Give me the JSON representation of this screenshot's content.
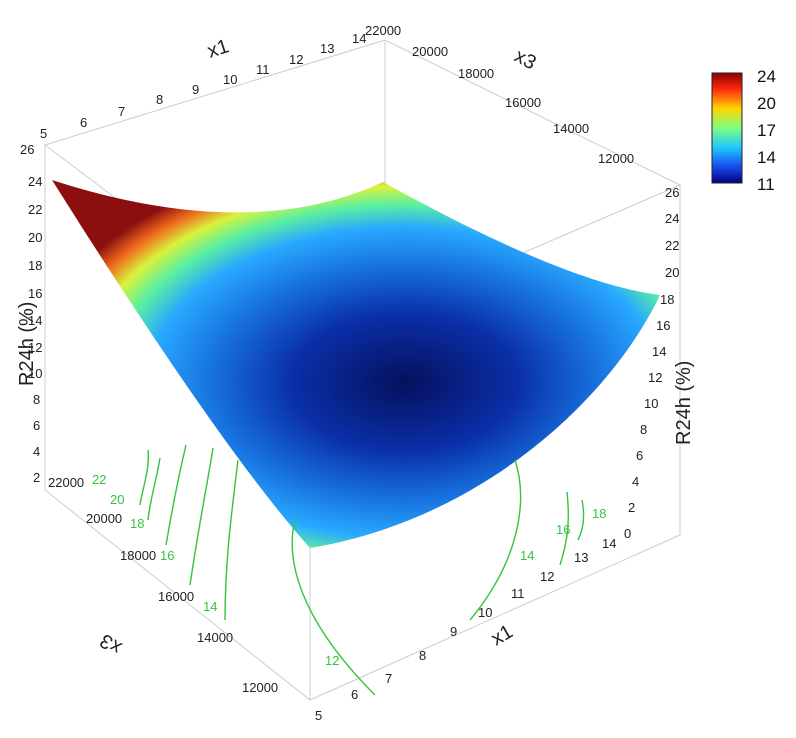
{
  "chart_data": {
    "type": "surface3d",
    "axes": {
      "x1": {
        "label": "x1",
        "range": [
          5,
          14
        ],
        "ticks": [
          5,
          6,
          7,
          8,
          9,
          10,
          11,
          12,
          13,
          14
        ]
      },
      "x3": {
        "label": "x3",
        "range": [
          11000,
          22000
        ],
        "ticks_top": [
          12000,
          14000,
          16000,
          18000,
          20000,
          22000
        ],
        "ticks_bottom": [
          12000,
          14000,
          16000,
          18000,
          20000,
          22000
        ]
      },
      "z": {
        "label": "R24h (%)",
        "range": [
          0,
          26
        ],
        "ticks_left": [
          2,
          4,
          6,
          8,
          10,
          12,
          14,
          16,
          18,
          20,
          22,
          24,
          26
        ],
        "ticks_right": [
          0,
          2,
          4,
          6,
          8,
          10,
          12,
          14,
          16,
          18,
          20,
          22,
          24,
          26
        ]
      }
    },
    "surface": {
      "description_points": [
        {
          "x1": 5,
          "x3": 22000,
          "z": 24
        },
        {
          "x1": 14,
          "x3": 22000,
          "z": 16
        },
        {
          "x1": 5,
          "x3": 11000,
          "z": 18
        },
        {
          "x1": 14,
          "x3": 11000,
          "z": 18
        },
        {
          "x1": 10,
          "x3": 14500,
          "z": 11
        }
      ]
    },
    "colorbar": {
      "ticks": [
        24,
        20,
        17,
        14,
        11
      ],
      "range": [
        11,
        24
      ]
    },
    "contour_labels_left": [
      "22",
      "20",
      "18",
      "16",
      "14"
    ],
    "contour_labels_right": [
      "18",
      "16",
      "14"
    ],
    "contour_label_bottom": "12",
    "colors": {
      "contour": "#35c43c",
      "low": "#000080",
      "mid": "#1e90ff",
      "high": "#8b0000"
    }
  }
}
